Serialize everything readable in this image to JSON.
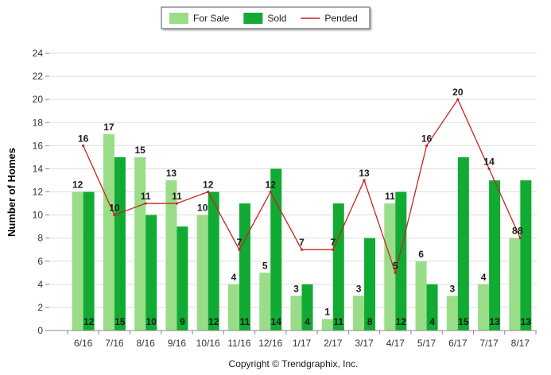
{
  "chart_data": {
    "type": "bar",
    "categories": [
      "6/16",
      "7/16",
      "8/16",
      "9/16",
      "10/16",
      "11/16",
      "12/16",
      "1/17",
      "2/17",
      "3/17",
      "4/17",
      "5/17",
      "6/17",
      "7/17",
      "8/17"
    ],
    "series": [
      {
        "name": "For Sale",
        "type": "bar",
        "color": "#99DD88",
        "values": [
          12,
          17,
          15,
          13,
          10,
          4,
          5,
          3,
          1,
          3,
          11,
          6,
          3,
          4,
          8
        ]
      },
      {
        "name": "Sold",
        "type": "bar",
        "color": "#11AA33",
        "values": [
          12,
          15,
          10,
          9,
          12,
          11,
          14,
          4,
          11,
          8,
          12,
          4,
          15,
          13,
          13
        ]
      },
      {
        "name": "Pended",
        "type": "line",
        "color": "#CC2222",
        "values": [
          16,
          10,
          11,
          11,
          12,
          7,
          12,
          7,
          7,
          13,
          5,
          16,
          20,
          14,
          8
        ]
      }
    ],
    "ylabel": "Number of Homes",
    "xlabel": "",
    "ylim": [
      0,
      24
    ],
    "yticks": [
      0,
      2,
      4,
      6,
      8,
      10,
      12,
      14,
      16,
      18,
      20,
      22,
      24
    ],
    "grid": true,
    "legend_position": "top-center",
    "copyright": "Copyright © Trendgraphix, Inc."
  }
}
